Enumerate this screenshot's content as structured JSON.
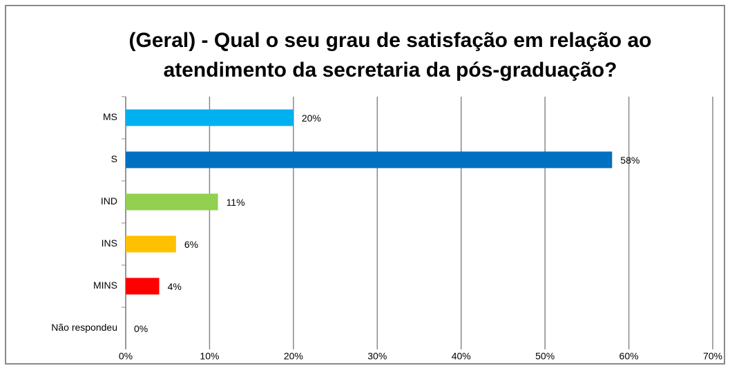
{
  "chart_data": {
    "type": "bar",
    "orientation": "horizontal",
    "title": [
      "(Geral) - Qual o seu grau de satisfação em relação ao",
      "atendimento da secretaria da pós-graduação?"
    ],
    "categories": [
      "MS",
      "S",
      "IND",
      "INS",
      "MINS",
      "Não respondeu"
    ],
    "values": [
      20,
      58,
      11,
      6,
      4,
      0
    ],
    "value_labels": [
      "20%",
      "58%",
      "11%",
      "6%",
      "4%",
      "0%"
    ],
    "colors": [
      "#00b0f0",
      "#0070c0",
      "#92d050",
      "#ffc000",
      "#ff0000",
      "#7f7f7f"
    ],
    "xlim": [
      0,
      70
    ],
    "xticks": [
      {
        "value": 0,
        "label": "0%"
      },
      {
        "value": 10,
        "label": "10%"
      },
      {
        "value": 20,
        "label": "20%"
      },
      {
        "value": 30,
        "label": "30%"
      },
      {
        "value": 40,
        "label": "40%"
      },
      {
        "value": 50,
        "label": "50%"
      },
      {
        "value": 60,
        "label": "60%"
      },
      {
        "value": 70,
        "label": "70%"
      }
    ],
    "grid": true
  }
}
